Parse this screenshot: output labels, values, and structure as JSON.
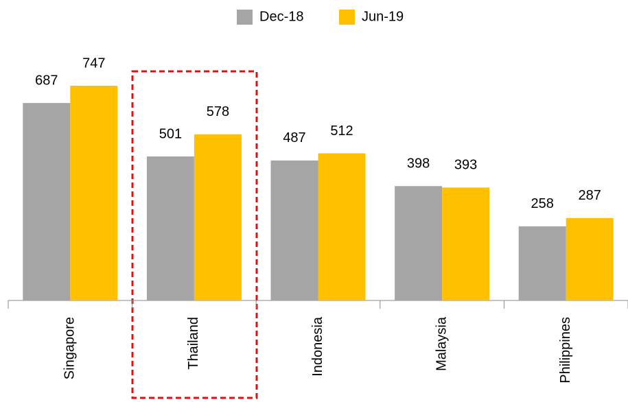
{
  "chart_data": {
    "type": "bar",
    "categories": [
      "Singapore",
      "Thailand",
      "Indonesia",
      "Malaysia",
      "Philippines"
    ],
    "series": [
      {
        "name": "Dec-18",
        "color": "#a5a5a5",
        "values": [
          687,
          501,
          487,
          398,
          258
        ]
      },
      {
        "name": "Jun-19",
        "color": "#ffc000",
        "values": [
          747,
          578,
          512,
          393,
          287
        ]
      }
    ],
    "legend": "top"
  }
}
